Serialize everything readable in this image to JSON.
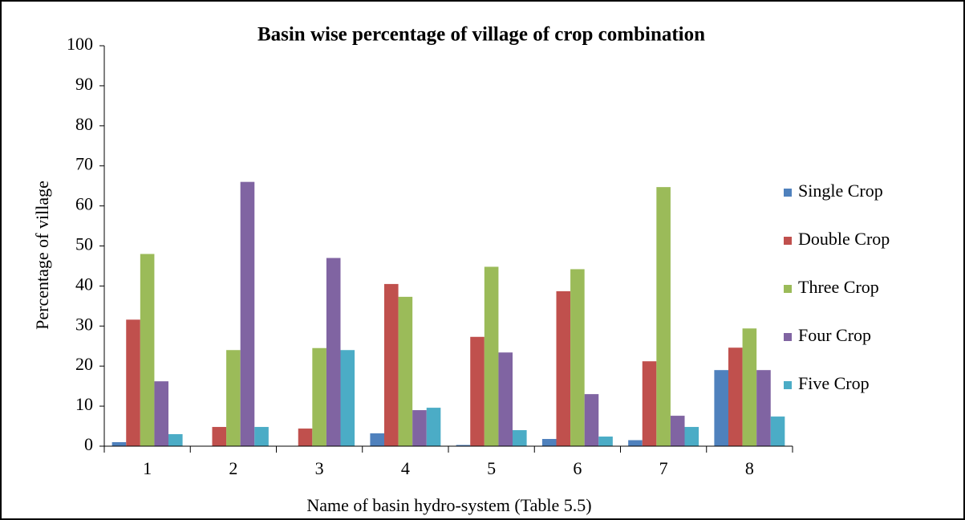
{
  "chart_data": {
    "type": "bar",
    "title": "Basin  wise percentage of village of crop combination",
    "x_label": "Name of basin hydro-system (Table 5.5)",
    "y_label": "Percentage of village",
    "categories": [
      "1",
      "2",
      "3",
      "4",
      "5",
      "6",
      "7",
      "8"
    ],
    "series": [
      {
        "name": "Single Crop",
        "color": "#4f81bd",
        "values": [
          1,
          0,
          0,
          3.2,
          0.3,
          1.8,
          1.5,
          19
        ]
      },
      {
        "name": "Double Crop",
        "color": "#c0504d",
        "values": [
          31.6,
          4.8,
          4.4,
          40.5,
          27.3,
          38.7,
          21.2,
          24.6
        ]
      },
      {
        "name": "Three Crop",
        "color": "#9bbb59",
        "values": [
          48,
          24,
          24.5,
          37.3,
          44.8,
          44.2,
          64.7,
          29.4
        ]
      },
      {
        "name": "Four Crop",
        "color": "#8064a2",
        "values": [
          16.2,
          66,
          47,
          9,
          23.4,
          13,
          7.6,
          19
        ]
      },
      {
        "name": "Five Crop",
        "color": "#4bacc6",
        "values": [
          3,
          4.8,
          24,
          9.6,
          4,
          2.4,
          4.8,
          7.4
        ]
      }
    ],
    "ylim": [
      0,
      100
    ],
    "yticks": [
      0,
      10,
      20,
      30,
      40,
      50,
      60,
      70,
      80,
      90,
      100
    ],
    "legend": "right"
  }
}
